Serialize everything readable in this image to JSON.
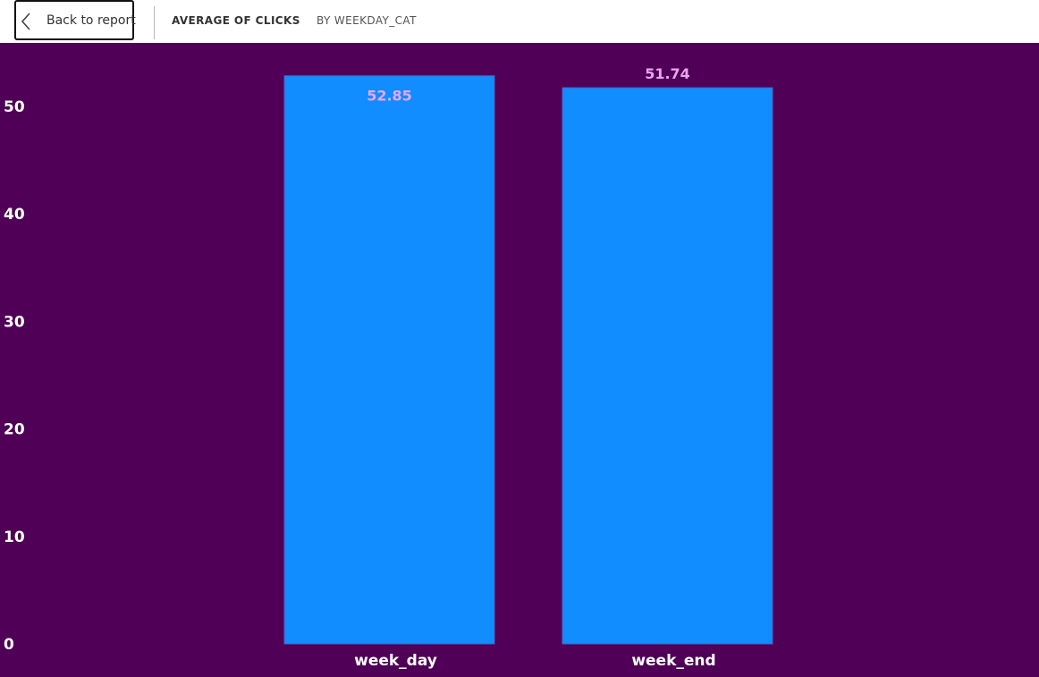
{
  "toolbar": {
    "back_label": "Back to report",
    "back_icon": "chevron-left-icon",
    "title": "AVERAGE OF CLICKS",
    "subtitle": "BY WEEKDAY_CAT"
  },
  "colors": {
    "background": "#500056",
    "bar": "#118dff",
    "data_label": "#eba5f0",
    "axis_text": "#ffffff"
  },
  "chart_data": {
    "type": "bar",
    "categories": [
      "week_day",
      "week_end"
    ],
    "values": [
      52.85,
      51.74
    ],
    "data_labels": [
      "52.85",
      "51.74"
    ],
    "yticks": [
      "0",
      "10",
      "20",
      "30",
      "40",
      "50"
    ],
    "ylim": [
      0,
      52.85
    ],
    "grid": false,
    "legend": "none"
  }
}
